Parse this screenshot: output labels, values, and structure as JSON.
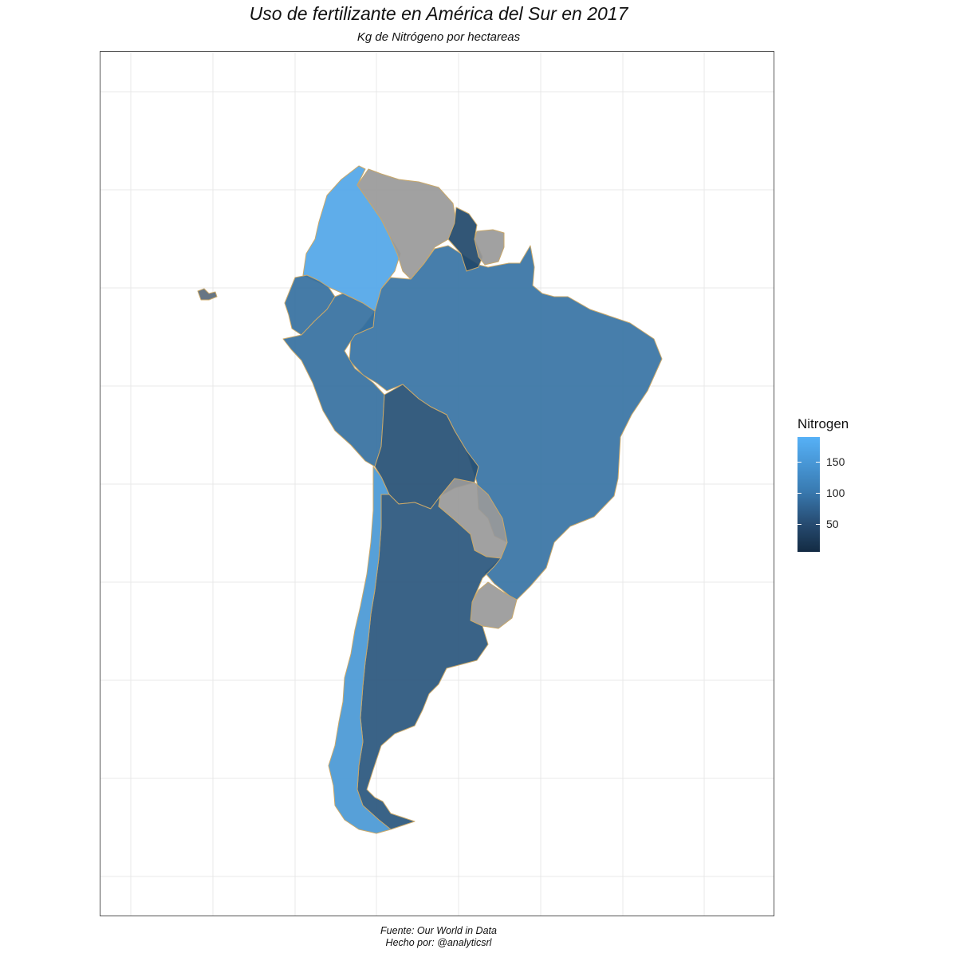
{
  "title": "Uso de fertilizante en América del Sur en 2017",
  "subtitle": "Kg de Nitrógeno por hectareas",
  "caption_line1": "Fuente: Our World in Data",
  "caption_line2": "Hecho por: @analyticsrl",
  "legend": {
    "title": "Nitrogen",
    "ticks": [
      {
        "label": "150",
        "value": 150
      },
      {
        "label": "100",
        "value": 100
      },
      {
        "label": "50",
        "value": 50
      }
    ],
    "range": [
      5,
      190
    ],
    "low_color": "#132b43",
    "high_color": "#56b1f7"
  },
  "colors": {
    "na_fill": "#999999",
    "border": "#c9a86a",
    "grid": "#e8e8e8",
    "panel_border": "#555555"
  },
  "chart_data": {
    "type": "choropleth",
    "fill_variable": "Nitrogen",
    "regions": [
      {
        "name": "Colombia",
        "value": 175
      },
      {
        "name": "Venezuela",
        "value": null
      },
      {
        "name": "Guyana",
        "value": 45
      },
      {
        "name": "Suriname",
        "value": null
      },
      {
        "name": "Ecuador",
        "value": 100
      },
      {
        "name": "Peru",
        "value": 100
      },
      {
        "name": "Brazil",
        "value": 105
      },
      {
        "name": "Bolivia",
        "value": 55
      },
      {
        "name": "Paraguay",
        "value": null
      },
      {
        "name": "Chile",
        "value": 155
      },
      {
        "name": "Argentina",
        "value": 65
      },
      {
        "name": "Uruguay",
        "value": null
      }
    ]
  }
}
